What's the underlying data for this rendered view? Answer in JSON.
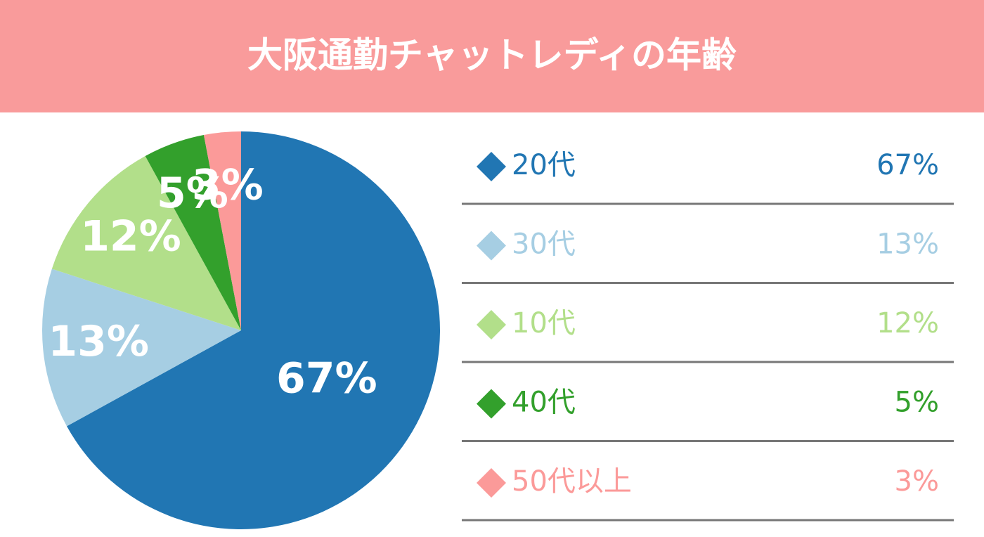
{
  "chart_data": {
    "type": "pie",
    "title": "大阪通勤チャットレディの年齢",
    "categories": [
      "20代",
      "30代",
      "10代",
      "40代",
      "50代以上"
    ],
    "values": [
      67,
      13,
      12,
      5,
      3
    ],
    "value_labels": [
      "67%",
      "13%",
      "12%",
      "5%",
      "3%"
    ],
    "colors": [
      "#2176b3",
      "#a6cee3",
      "#b2df8a",
      "#33a02c",
      "#fb9a99"
    ]
  }
}
